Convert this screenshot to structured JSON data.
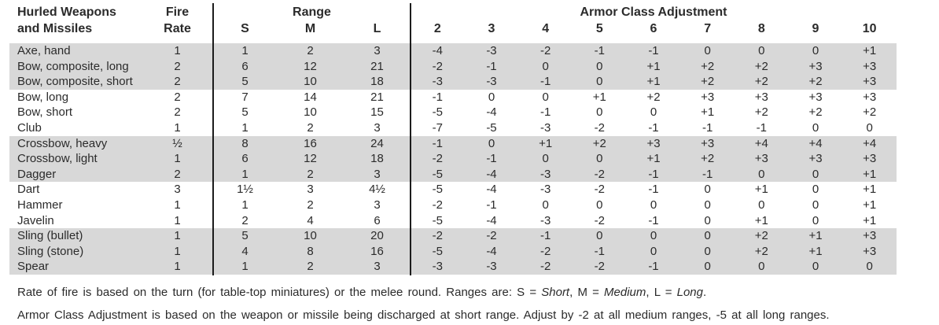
{
  "table": {
    "title_line1": "Hurled Weapons",
    "title_line2": "and Missiles",
    "fire_rate_line1": "Fire",
    "fire_rate_line2": "Rate",
    "range_label": "Range",
    "range_cols": [
      "S",
      "M",
      "L"
    ],
    "ac_label": "Armor Class Adjustment",
    "ac_cols": [
      "2",
      "3",
      "4",
      "5",
      "6",
      "7",
      "8",
      "9",
      "10"
    ],
    "rows": [
      {
        "name": "Axe, hand",
        "fire_rate": "1",
        "range": [
          "1",
          "2",
          "3"
        ],
        "ac": [
          "-4",
          "-3",
          "-2",
          "-1",
          "-1",
          "0",
          "0",
          "0",
          "+1"
        ],
        "shaded": true
      },
      {
        "name": "Bow, composite, long",
        "fire_rate": "2",
        "range": [
          "6",
          "12",
          "21"
        ],
        "ac": [
          "-2",
          "-1",
          "0",
          "0",
          "+1",
          "+2",
          "+2",
          "+3",
          "+3"
        ],
        "shaded": true
      },
      {
        "name": "Bow, composite, short",
        "fire_rate": "2",
        "range": [
          "5",
          "10",
          "18"
        ],
        "ac": [
          "-3",
          "-3",
          "-1",
          "0",
          "+1",
          "+2",
          "+2",
          "+2",
          "+3"
        ],
        "shaded": true
      },
      {
        "name": "Bow, long",
        "fire_rate": "2",
        "range": [
          "7",
          "14",
          "21"
        ],
        "ac": [
          "-1",
          "0",
          "0",
          "+1",
          "+2",
          "+3",
          "+3",
          "+3",
          "+3"
        ],
        "shaded": false
      },
      {
        "name": "Bow, short",
        "fire_rate": "2",
        "range": [
          "5",
          "10",
          "15"
        ],
        "ac": [
          "-5",
          "-4",
          "-1",
          "0",
          "0",
          "+1",
          "+2",
          "+2",
          "+2"
        ],
        "shaded": false
      },
      {
        "name": "Club",
        "fire_rate": "1",
        "range": [
          "1",
          "2",
          "3"
        ],
        "ac": [
          "-7",
          "-5",
          "-3",
          "-2",
          "-1",
          "-1",
          "-1",
          "0",
          "0"
        ],
        "shaded": false
      },
      {
        "name": "Crossbow, heavy",
        "fire_rate": "½",
        "range": [
          "8",
          "16",
          "24"
        ],
        "ac": [
          "-1",
          "0",
          "+1",
          "+2",
          "+3",
          "+3",
          "+4",
          "+4",
          "+4"
        ],
        "shaded": true
      },
      {
        "name": "Crossbow, light",
        "fire_rate": "1",
        "range": [
          "6",
          "12",
          "18"
        ],
        "ac": [
          "-2",
          "-1",
          "0",
          "0",
          "+1",
          "+2",
          "+3",
          "+3",
          "+3"
        ],
        "shaded": true
      },
      {
        "name": "Dagger",
        "fire_rate": "2",
        "range": [
          "1",
          "2",
          "3"
        ],
        "ac": [
          "-5",
          "-4",
          "-3",
          "-2",
          "-1",
          "-1",
          "0",
          "0",
          "+1"
        ],
        "shaded": true
      },
      {
        "name": "Dart",
        "fire_rate": "3",
        "range": [
          "1½",
          "3",
          "4½"
        ],
        "ac": [
          "-5",
          "-4",
          "-3",
          "-2",
          "-1",
          "0",
          "+1",
          "0",
          "+1"
        ],
        "shaded": false
      },
      {
        "name": "Hammer",
        "fire_rate": "1",
        "range": [
          "1",
          "2",
          "3"
        ],
        "ac": [
          "-2",
          "-1",
          "0",
          "0",
          "0",
          "0",
          "0",
          "0",
          "+1"
        ],
        "shaded": false
      },
      {
        "name": "Javelin",
        "fire_rate": "1",
        "range": [
          "2",
          "4",
          "6"
        ],
        "ac": [
          "-5",
          "-4",
          "-3",
          "-2",
          "-1",
          "0",
          "+1",
          "0",
          "+1"
        ],
        "shaded": false
      },
      {
        "name": "Sling (bullet)",
        "fire_rate": "1",
        "range": [
          "5",
          "10",
          "20"
        ],
        "ac": [
          "-2",
          "-2",
          "-1",
          "0",
          "0",
          "0",
          "+2",
          "+1",
          "+3"
        ],
        "shaded": true
      },
      {
        "name": "Sling (stone)",
        "fire_rate": "1",
        "range": [
          "4",
          "8",
          "16"
        ],
        "ac": [
          "-5",
          "-4",
          "-2",
          "-1",
          "0",
          "0",
          "+2",
          "+1",
          "+3"
        ],
        "shaded": true
      },
      {
        "name": "Spear",
        "fire_rate": "1",
        "range": [
          "1",
          "2",
          "3"
        ],
        "ac": [
          "-3",
          "-3",
          "-2",
          "-2",
          "-1",
          "0",
          "0",
          "0",
          "0"
        ],
        "shaded": true
      }
    ]
  },
  "footnotes": {
    "note1": {
      "prefix": "Rate of fire is based on the turn (for table-top miniatures) or the melee round. Ranges are: S = ",
      "short": "Short",
      "sep1": ", M = ",
      "medium": "Medium",
      "sep2": ", L = ",
      "long": "Long",
      "end": "."
    },
    "note2": "Armor Class Adjustment is based on the weapon or missile being discharged at short range. Adjust by -2 at all medium ranges, -5 at all long ranges."
  },
  "colors": {
    "row_shade": "#d8d8d8",
    "text": "#2b2b2b",
    "rule": "#1c1c1c"
  }
}
